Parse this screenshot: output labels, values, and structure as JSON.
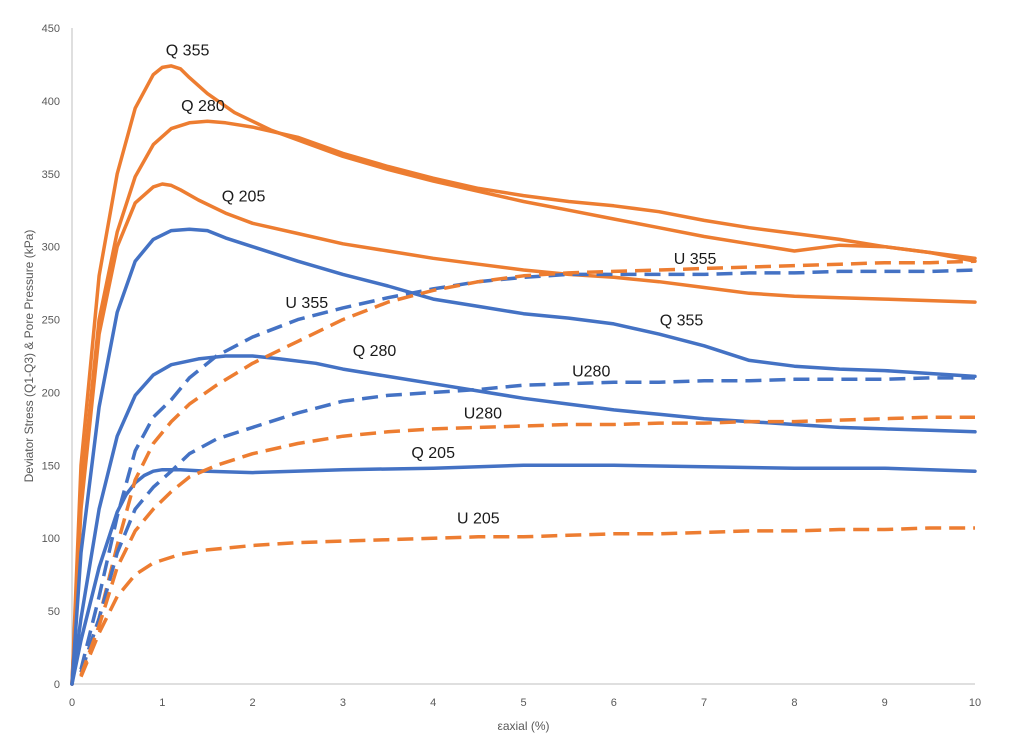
{
  "chart_data": {
    "type": "line",
    "title": "",
    "xlabel": "εaxial (%)",
    "ylabel": "Deviator Stress (Q1-Q3) & Pore Pressure (kPa)",
    "xlim": [
      0,
      10
    ],
    "ylim": [
      0,
      450
    ],
    "xticks": [
      0,
      1,
      2,
      3,
      4,
      5,
      6,
      7,
      8,
      9,
      10
    ],
    "yticks": [
      0,
      50,
      100,
      150,
      200,
      250,
      300,
      350,
      400,
      450
    ],
    "grid": false,
    "legend": "none",
    "colors": {
      "orange": "#ED7D31",
      "blue": "#4472C4"
    },
    "series": [
      {
        "name": "Q 355 (orange)",
        "color": "#ED7D31",
        "dash": false,
        "x": [
          0,
          0.1,
          0.3,
          0.5,
          0.7,
          0.9,
          1.0,
          1.1,
          1.2,
          1.3,
          1.5,
          1.8,
          2.2,
          2.6,
          3.0,
          3.5,
          4.0,
          4.5,
          5.0,
          5.5,
          6.0,
          6.5,
          7.0,
          7.5,
          8.0,
          8.5,
          9.0,
          9.5,
          10.0
        ],
        "y": [
          0,
          150,
          280,
          350,
          395,
          418,
          423,
          424,
          422,
          416,
          405,
          392,
          380,
          371,
          362,
          353,
          345,
          338,
          331,
          325,
          319,
          313,
          307,
          302,
          297,
          301,
          300,
          296,
          292
        ]
      },
      {
        "name": "Q 280 (orange)",
        "color": "#ED7D31",
        "dash": false,
        "x": [
          0,
          0.1,
          0.3,
          0.5,
          0.7,
          0.9,
          1.1,
          1.3,
          1.5,
          1.7,
          2.0,
          2.5,
          3.0,
          3.5,
          4.0,
          4.5,
          5.0,
          5.5,
          6.0,
          6.5,
          7.0,
          7.5,
          8.0,
          8.5,
          9.0,
          9.5,
          10.0
        ],
        "y": [
          0,
          130,
          250,
          310,
          348,
          370,
          381,
          385,
          386,
          385,
          382,
          375,
          364,
          355,
          347,
          340,
          335,
          331,
          328,
          324,
          318,
          313,
          309,
          305,
          300,
          296,
          290
        ]
      },
      {
        "name": "Q 205 (orange)",
        "color": "#ED7D31",
        "dash": false,
        "x": [
          0,
          0.1,
          0.3,
          0.5,
          0.7,
          0.9,
          1.0,
          1.1,
          1.2,
          1.4,
          1.7,
          2.0,
          2.5,
          3.0,
          3.5,
          4.0,
          4.5,
          5.0,
          5.5,
          6.0,
          6.5,
          7.0,
          7.5,
          8.0,
          8.5,
          9.0,
          9.5,
          10.0
        ],
        "y": [
          0,
          120,
          240,
          300,
          330,
          341,
          343,
          342,
          339,
          332,
          323,
          316,
          309,
          302,
          297,
          292,
          288,
          284,
          281,
          279,
          276,
          272,
          268,
          266,
          265,
          264,
          263,
          262
        ]
      },
      {
        "name": "Q 355 (blue)",
        "color": "#4472C4",
        "dash": false,
        "x": [
          0,
          0.1,
          0.3,
          0.5,
          0.7,
          0.9,
          1.1,
          1.3,
          1.5,
          1.7,
          2.0,
          2.5,
          3.0,
          3.5,
          4.0,
          4.5,
          5.0,
          5.5,
          6.0,
          6.5,
          7.0,
          7.5,
          8.0,
          8.5,
          9.0,
          9.5,
          10.0
        ],
        "y": [
          0,
          90,
          190,
          255,
          290,
          305,
          311,
          312,
          311,
          306,
          300,
          290,
          281,
          273,
          264,
          259,
          254,
          251,
          247,
          240,
          232,
          222,
          218,
          216,
          215,
          213,
          211
        ]
      },
      {
        "name": "Q 280 (blue)",
        "color": "#4472C4",
        "dash": false,
        "x": [
          0,
          0.1,
          0.3,
          0.5,
          0.7,
          0.9,
          1.1,
          1.4,
          1.7,
          2.0,
          2.3,
          2.7,
          3.0,
          3.5,
          4.0,
          4.5,
          5.0,
          5.5,
          6.0,
          6.5,
          7.0,
          7.5,
          8.0,
          8.5,
          9.0,
          9.5,
          10.0
        ],
        "y": [
          0,
          45,
          120,
          170,
          198,
          212,
          219,
          223,
          225,
          225,
          223,
          220,
          216,
          211,
          206,
          201,
          196,
          192,
          188,
          185,
          182,
          180,
          178,
          176,
          175,
          174,
          173
        ]
      },
      {
        "name": "Q 205 (blue)",
        "color": "#4472C4",
        "dash": false,
        "x": [
          0,
          0.1,
          0.3,
          0.5,
          0.6,
          0.7,
          0.8,
          0.9,
          1.0,
          1.2,
          1.5,
          2.0,
          3.0,
          4.0,
          5.0,
          6.0,
          7.0,
          8.0,
          9.0,
          10.0
        ],
        "y": [
          0,
          30,
          80,
          118,
          130,
          138,
          143,
          146,
          147,
          147,
          146,
          145,
          147,
          148,
          150,
          150,
          149,
          148,
          148,
          146
        ]
      },
      {
        "name": "U 355 (blue, dashed)",
        "color": "#4472C4",
        "dash": true,
        "x": [
          0.1,
          0.3,
          0.5,
          0.7,
          0.9,
          1.1,
          1.3,
          1.6,
          2.0,
          2.5,
          3.0,
          3.5,
          4.0,
          4.5,
          5.0,
          5.5,
          6.0,
          6.5,
          7.0,
          7.5,
          8.0,
          8.5,
          9.0,
          9.5,
          10.0
        ],
        "y": [
          10,
          60,
          115,
          160,
          183,
          195,
          210,
          225,
          238,
          250,
          258,
          265,
          271,
          276,
          279,
          281,
          281,
          281,
          281,
          282,
          282,
          283,
          283,
          283,
          284
        ]
      },
      {
        "name": "U 355 (orange, dashed)",
        "color": "#ED7D31",
        "dash": true,
        "x": [
          0.1,
          0.3,
          0.5,
          0.7,
          0.9,
          1.1,
          1.3,
          1.6,
          2.0,
          2.5,
          3.0,
          3.5,
          4.0,
          4.5,
          5.0,
          5.5,
          6.0,
          6.5,
          7.0,
          7.5,
          8.0,
          8.5,
          9.0,
          9.5,
          10.0
        ],
        "y": [
          8,
          45,
          95,
          140,
          165,
          180,
          192,
          205,
          220,
          235,
          250,
          262,
          270,
          276,
          280,
          282,
          283,
          284,
          285,
          286,
          287,
          288,
          289,
          289,
          290
        ]
      },
      {
        "name": "U280 (blue, dashed)",
        "color": "#4472C4",
        "dash": true,
        "x": [
          0.1,
          0.3,
          0.5,
          0.7,
          0.9,
          1.1,
          1.3,
          1.6,
          2.0,
          2.5,
          3.0,
          3.5,
          4.0,
          4.5,
          5.0,
          5.5,
          6.0,
          6.5,
          7.0,
          7.5,
          8.0,
          8.5,
          9.0,
          9.5,
          10.0
        ],
        "y": [
          8,
          45,
          90,
          120,
          135,
          146,
          158,
          168,
          176,
          186,
          194,
          198,
          200,
          202,
          205,
          206,
          207,
          207,
          208,
          208,
          209,
          209,
          209,
          210,
          210
        ]
      },
      {
        "name": "U280 (orange, dashed)",
        "color": "#ED7D31",
        "dash": true,
        "x": [
          0.1,
          0.3,
          0.5,
          0.7,
          0.9,
          1.1,
          1.3,
          1.6,
          2.0,
          2.5,
          3.0,
          3.5,
          4.0,
          4.5,
          5.0,
          5.5,
          6.0,
          6.5,
          7.0,
          7.5,
          8.0,
          8.5,
          9.0,
          9.5,
          10.0
        ],
        "y": [
          6,
          40,
          80,
          105,
          120,
          132,
          142,
          150,
          158,
          165,
          170,
          173,
          175,
          176,
          177,
          178,
          178,
          179,
          179,
          180,
          180,
          181,
          182,
          183,
          183
        ]
      },
      {
        "name": "U 205 (orange, dashed)",
        "color": "#ED7D31",
        "dash": true,
        "x": [
          0.1,
          0.3,
          0.5,
          0.7,
          0.9,
          1.2,
          1.5,
          2.0,
          2.5,
          3.0,
          3.5,
          4.0,
          4.5,
          5.0,
          5.5,
          6.0,
          6.5,
          7.0,
          7.5,
          8.0,
          8.5,
          9.0,
          9.5,
          10.0
        ],
        "y": [
          5,
          35,
          60,
          75,
          83,
          89,
          92,
          95,
          97,
          98,
          99,
          100,
          101,
          101,
          102,
          103,
          103,
          104,
          105,
          105,
          106,
          106,
          107,
          107
        ]
      }
    ],
    "annotations": [
      {
        "text": "Q 355",
        "x": 1.28,
        "y": 431
      },
      {
        "text": "Q 280",
        "x": 1.45,
        "y": 393
      },
      {
        "text": "Q 205",
        "x": 1.9,
        "y": 331
      },
      {
        "text": "U 355",
        "x": 2.6,
        "y": 258
      },
      {
        "text": "U 355",
        "x": 6.9,
        "y": 288
      },
      {
        "text": "Q 355",
        "x": 6.75,
        "y": 246
      },
      {
        "text": "Q 280",
        "x": 3.35,
        "y": 225
      },
      {
        "text": "U280",
        "x": 5.75,
        "y": 211
      },
      {
        "text": "U280",
        "x": 4.55,
        "y": 182
      },
      {
        "text": "Q 205",
        "x": 4.0,
        "y": 155
      },
      {
        "text": "U 205",
        "x": 4.5,
        "y": 110
      }
    ]
  }
}
